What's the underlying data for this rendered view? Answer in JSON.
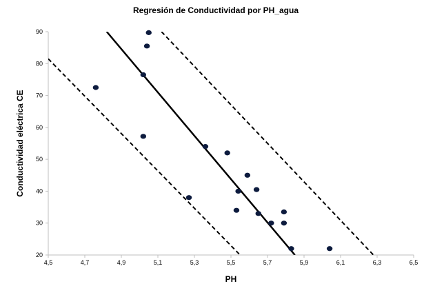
{
  "chart_data": {
    "type": "scatter",
    "title": "Regresión de Conductividad  por PH_agua",
    "xlabel": "PH",
    "ylabel": "Conductividad eléctrica CE",
    "xlim": [
      4.5,
      6.5
    ],
    "ylim": [
      20,
      90
    ],
    "x_ticks": [
      "4,5",
      "4,7",
      "4,9",
      "5,1",
      "5,3",
      "5,5",
      "5,7",
      "5,9",
      "6,1",
      "6,3",
      "6,5"
    ],
    "y_ticks": [
      "20",
      "30",
      "40",
      "50",
      "60",
      "70",
      "80",
      "90"
    ],
    "grid": false,
    "colors": {
      "points": "#0d1b3e",
      "lines": "#000000",
      "axis": "#bfbfbf"
    },
    "series": [
      {
        "values": [
          {
            "x": 4.76,
            "y": 72.5
          },
          {
            "x": 5.05,
            "y": 89.7
          },
          {
            "x": 5.04,
            "y": 85.5
          },
          {
            "x": 5.02,
            "y": 76.5
          },
          {
            "x": 5.02,
            "y": 57.2
          },
          {
            "x": 5.27,
            "y": 38.0
          },
          {
            "x": 5.36,
            "y": 54.0
          },
          {
            "x": 5.48,
            "y": 52.0
          },
          {
            "x": 5.54,
            "y": 40.0
          },
          {
            "x": 5.53,
            "y": 34.0
          },
          {
            "x": 5.59,
            "y": 45.0
          },
          {
            "x": 5.64,
            "y": 40.5
          },
          {
            "x": 5.65,
            "y": 33.0
          },
          {
            "x": 5.72,
            "y": 30.0
          },
          {
            "x": 5.79,
            "y": 33.5
          },
          {
            "x": 5.79,
            "y": 30.0
          },
          {
            "x": 5.83,
            "y": 22.0
          },
          {
            "x": 6.04,
            "y": 22.0
          }
        ]
      }
    ],
    "lines": [
      {
        "style": "solid",
        "points": [
          [
            4.82,
            90
          ],
          [
            5.85,
            20
          ]
        ]
      },
      {
        "style": "dashed",
        "points": [
          [
            4.5,
            81.5
          ],
          [
            5.55,
            20
          ]
        ]
      },
      {
        "style": "dashed",
        "points": [
          [
            5.12,
            90
          ],
          [
            6.28,
            20
          ]
        ]
      }
    ]
  }
}
